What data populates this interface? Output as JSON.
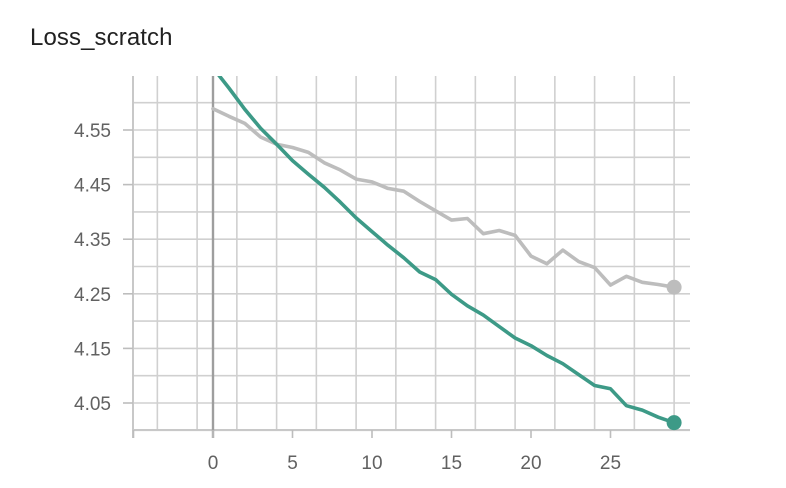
{
  "title": "Loss_scratch",
  "chart_data": {
    "type": "line",
    "title": "Loss_scratch",
    "xlabel": "",
    "ylabel": "",
    "x_ticks": [
      0,
      5,
      10,
      15,
      20,
      25
    ],
    "y_ticks": [
      4.05,
      4.15,
      4.25,
      4.35,
      4.45,
      4.55
    ],
    "xlim": [
      -5,
      30
    ],
    "ylim": [
      4.0,
      4.6
    ],
    "grid": true,
    "series": [
      {
        "color": "#bdbdbd",
        "x": [
          0,
          1,
          2,
          3,
          4,
          5,
          6,
          7,
          8,
          9,
          10,
          11,
          12,
          13,
          14,
          15,
          16,
          17,
          18,
          19,
          20,
          21,
          22,
          23,
          24,
          25,
          26,
          27,
          28,
          29
        ],
        "y": [
          4.589,
          4.575,
          4.562,
          4.537,
          4.524,
          4.518,
          4.509,
          4.49,
          4.477,
          4.46,
          4.455,
          4.443,
          4.438,
          4.419,
          4.402,
          4.385,
          4.388,
          4.36,
          4.366,
          4.357,
          4.319,
          4.305,
          4.33,
          4.309,
          4.298,
          4.266,
          4.282,
          4.271,
          4.267,
          4.262
        ]
      },
      {
        "color": "#3d9a87",
        "x": [
          0,
          1,
          2,
          3,
          4,
          5,
          6,
          7,
          8,
          9,
          10,
          11,
          12,
          13,
          14,
          15,
          16,
          17,
          18,
          19,
          20,
          21,
          22,
          23,
          24,
          25,
          26,
          27,
          28,
          29
        ],
        "y": [
          4.664,
          4.627,
          4.588,
          4.553,
          4.524,
          4.494,
          4.469,
          4.445,
          4.418,
          4.389,
          4.364,
          4.339,
          4.316,
          4.29,
          4.276,
          4.249,
          4.228,
          4.211,
          4.19,
          4.169,
          4.155,
          4.137,
          4.122,
          4.102,
          4.082,
          4.076,
          4.045,
          4.037,
          4.024,
          4.014
        ]
      }
    ]
  }
}
